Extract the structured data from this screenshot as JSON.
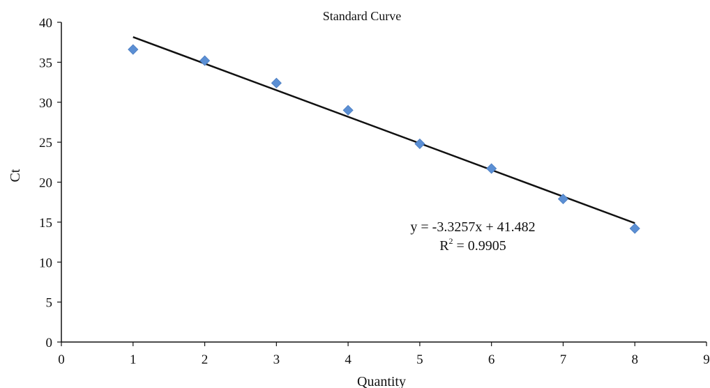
{
  "chart_data": {
    "type": "scatter",
    "title": "Standard Curve",
    "xlabel": "Quantity",
    "ylabel": "Ct",
    "xlim": [
      0,
      9
    ],
    "ylim": [
      0,
      40
    ],
    "x_ticks": [
      "0",
      "1",
      "2",
      "3",
      "4",
      "5",
      "6",
      "7",
      "8",
      "9"
    ],
    "y_ticks": [
      "0",
      "5",
      "10",
      "15",
      "20",
      "25",
      "30",
      "35",
      "40"
    ],
    "grid": false,
    "legend": "none",
    "series": [
      {
        "x": [
          1,
          2,
          3,
          4,
          5,
          6,
          7,
          8
        ],
        "y": [
          36.6,
          35.2,
          32.4,
          29.0,
          24.8,
          21.7,
          17.9,
          14.2
        ],
        "color": "#5b8fd4",
        "marker": "diamond"
      }
    ],
    "trendline": {
      "slope": -3.3257,
      "intercept": 41.482,
      "x_range": [
        1,
        8
      ],
      "color": "#111111"
    },
    "annotations": {
      "equation": "y = -3.3257x + 41.482",
      "r2_label": "R",
      "r2_sup": "2",
      "r2_value": " = 0.9905"
    }
  }
}
